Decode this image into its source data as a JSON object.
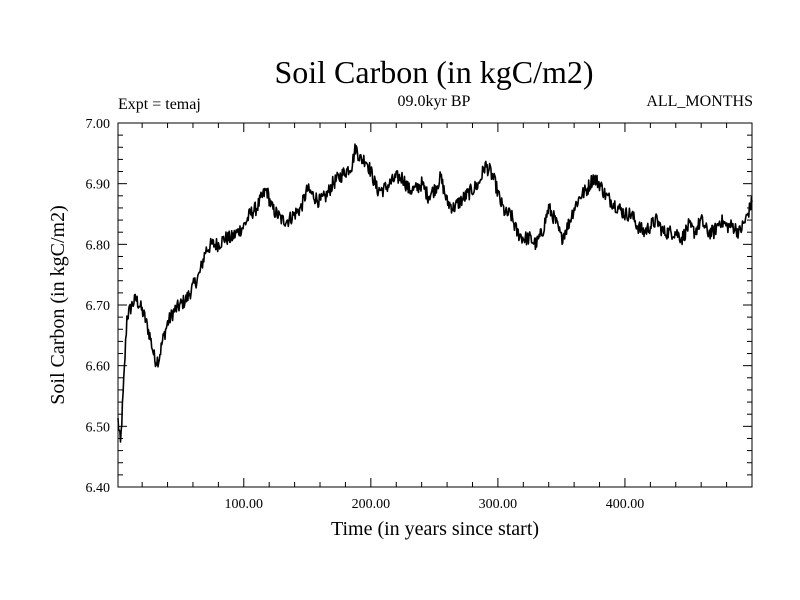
{
  "chart_data": {
    "type": "line",
    "title": "Soil Carbon (in kgC/m2)",
    "subtitle": "09.0kyr BP",
    "left_label": "Expt = temaj",
    "right_label": "ALL_MONTHS",
    "xlabel": "Time (in years since start)",
    "ylabel": "Soil Carbon (in kgC/m2)",
    "xlim": [
      1,
      500
    ],
    "ylim": [
      6.4,
      7.0
    ],
    "x_ticks": [
      100,
      200,
      300,
      400
    ],
    "x_tick_labels": [
      "100.00",
      "200.00",
      "300.00",
      "400.00"
    ],
    "y_ticks": [
      6.4,
      6.5,
      6.6,
      6.7,
      6.8,
      6.9,
      7.0
    ],
    "y_tick_labels": [
      "6.40",
      "6.50",
      "6.60",
      "6.70",
      "6.80",
      "6.90",
      "7.00"
    ],
    "noise_amplitude": 0.012,
    "series": [
      {
        "name": "Soil Carbon",
        "color": "#000000",
        "x": [
          1,
          3,
          5,
          8,
          12,
          15,
          18,
          22,
          26,
          30,
          33,
          36,
          40,
          45,
          50,
          55,
          60,
          65,
          70,
          75,
          80,
          85,
          90,
          95,
          100,
          105,
          110,
          115,
          118,
          122,
          126,
          130,
          135,
          140,
          145,
          150,
          155,
          160,
          165,
          170,
          175,
          180,
          185,
          188,
          192,
          196,
          200,
          205,
          210,
          215,
          220,
          225,
          230,
          235,
          240,
          245,
          250,
          255,
          260,
          265,
          270,
          275,
          280,
          285,
          290,
          294,
          298,
          302,
          306,
          310,
          315,
          320,
          325,
          330,
          335,
          340,
          345,
          350,
          355,
          360,
          365,
          370,
          375,
          380,
          385,
          390,
          395,
          400,
          405,
          410,
          415,
          420,
          425,
          430,
          435,
          440,
          445,
          450,
          455,
          460,
          465,
          470,
          475,
          480,
          485,
          490,
          495,
          500
        ],
        "values": [
          6.51,
          6.47,
          6.55,
          6.68,
          6.7,
          6.71,
          6.7,
          6.68,
          6.65,
          6.61,
          6.61,
          6.64,
          6.67,
          6.69,
          6.7,
          6.71,
          6.73,
          6.75,
          6.79,
          6.8,
          6.8,
          6.81,
          6.81,
          6.82,
          6.83,
          6.85,
          6.86,
          6.88,
          6.89,
          6.86,
          6.85,
          6.84,
          6.84,
          6.85,
          6.86,
          6.89,
          6.88,
          6.87,
          6.88,
          6.9,
          6.91,
          6.92,
          6.93,
          6.96,
          6.94,
          6.94,
          6.92,
          6.89,
          6.89,
          6.9,
          6.91,
          6.91,
          6.89,
          6.89,
          6.9,
          6.88,
          6.89,
          6.91,
          6.87,
          6.86,
          6.87,
          6.88,
          6.89,
          6.9,
          6.93,
          6.92,
          6.9,
          6.87,
          6.85,
          6.85,
          6.82,
          6.81,
          6.81,
          6.8,
          6.82,
          6.86,
          6.84,
          6.81,
          6.83,
          6.86,
          6.88,
          6.89,
          6.91,
          6.9,
          6.88,
          6.87,
          6.86,
          6.85,
          6.85,
          6.83,
          6.82,
          6.83,
          6.84,
          6.82,
          6.82,
          6.82,
          6.81,
          6.83,
          6.82,
          6.84,
          6.82,
          6.82,
          6.84,
          6.83,
          6.83,
          6.82,
          6.84,
          6.87
        ]
      }
    ]
  }
}
